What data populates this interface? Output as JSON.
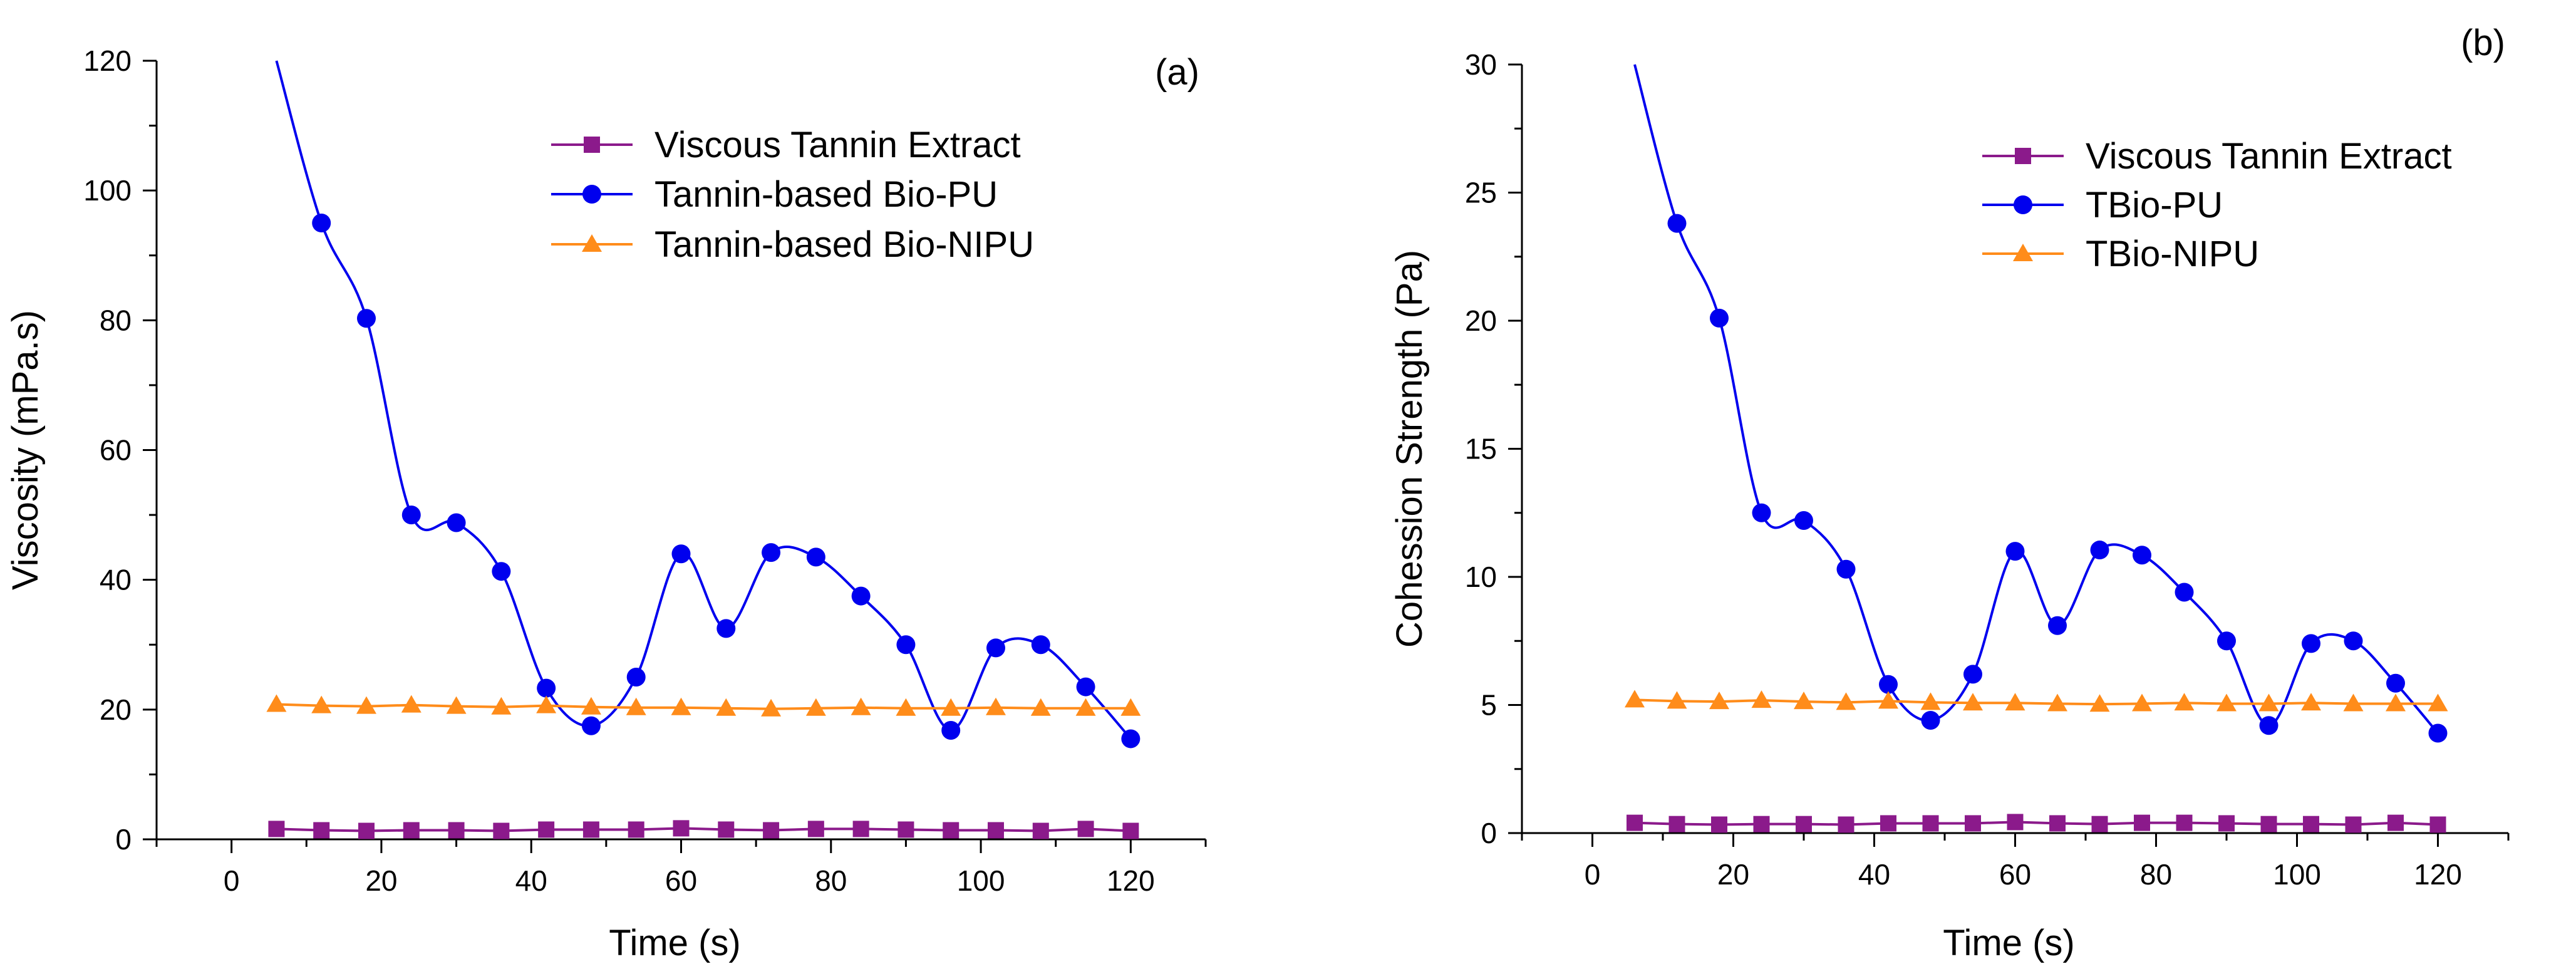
{
  "chart_data": [
    {
      "type": "line",
      "panel_label": "(a)",
      "title": "",
      "xlabel": "Time (s)",
      "ylabel": "Viscosity (mPa.s)",
      "xlim": [
        -10,
        130
      ],
      "ylim": [
        0,
        120
      ],
      "xticks": [
        0,
        20,
        40,
        60,
        80,
        100,
        120
      ],
      "yticks": [
        0,
        20,
        40,
        60,
        80,
        100,
        120
      ],
      "legend_position": "top-center",
      "x": [
        6,
        12,
        18,
        24,
        30,
        36,
        42,
        48,
        54,
        60,
        66,
        72,
        78,
        84,
        90,
        96,
        102,
        108,
        114,
        120
      ],
      "series": [
        {
          "name": "Viscous Tannin Extract",
          "color": "#8B1A8B",
          "marker": "square",
          "values": [
            1.6,
            1.4,
            1.3,
            1.4,
            1.4,
            1.3,
            1.5,
            1.5,
            1.5,
            1.7,
            1.5,
            1.4,
            1.6,
            1.6,
            1.5,
            1.4,
            1.4,
            1.3,
            1.6,
            1.3
          ]
        },
        {
          "name": "Tannin-based Bio-PU",
          "color": "#0000EE",
          "marker": "circle",
          "start_point": [
            6,
            120
          ],
          "values": [
            null,
            95,
            80.3,
            50,
            48.8,
            41.3,
            23.3,
            17.5,
            25,
            44,
            32.5,
            44.2,
            43.5,
            37.5,
            30,
            16.8,
            29.5,
            30,
            23.5,
            15.5
          ]
        },
        {
          "name": "Tannin-based Bio-NIPU",
          "color": "#FF8C1A",
          "marker": "triangle",
          "values": [
            20.8,
            20.6,
            20.5,
            20.7,
            20.5,
            20.4,
            20.6,
            20.4,
            20.3,
            20.3,
            20.2,
            20.1,
            20.2,
            20.3,
            20.2,
            20.2,
            20.3,
            20.2,
            20.2,
            20.2
          ]
        }
      ]
    },
    {
      "type": "line",
      "panel_label": "(b)",
      "title": "",
      "xlabel": "Time (s)",
      "ylabel": "Cohession Strength (Pa)",
      "xlim": [
        -10,
        130
      ],
      "ylim": [
        0,
        30
      ],
      "xticks": [
        0,
        20,
        40,
        60,
        80,
        100,
        120
      ],
      "yticks": [
        0,
        5,
        10,
        15,
        20,
        25,
        30
      ],
      "legend_position": "top-right",
      "x": [
        6,
        12,
        18,
        24,
        30,
        36,
        42,
        48,
        54,
        60,
        66,
        72,
        78,
        84,
        90,
        96,
        102,
        108,
        114,
        120
      ],
      "series": [
        {
          "name": "Viscous Tannin Extract",
          "color": "#8B1A8B",
          "marker": "square",
          "values": [
            0.4,
            0.35,
            0.33,
            0.35,
            0.35,
            0.33,
            0.38,
            0.38,
            0.38,
            0.43,
            0.38,
            0.35,
            0.4,
            0.4,
            0.38,
            0.35,
            0.35,
            0.33,
            0.4,
            0.33
          ]
        },
        {
          "name": "TBio-PU",
          "color": "#0000EE",
          "marker": "circle",
          "start_point": [
            6,
            30
          ],
          "values": [
            null,
            23.8,
            20.1,
            12.5,
            12.2,
            10.3,
            5.8,
            4.4,
            6.2,
            11,
            8.1,
            11.05,
            10.85,
            9.4,
            7.5,
            4.2,
            7.4,
            7.5,
            5.85,
            3.9
          ]
        },
        {
          "name": "TBio-NIPU",
          "color": "#FF8C1A",
          "marker": "triangle",
          "values": [
            5.2,
            5.15,
            5.13,
            5.18,
            5.13,
            5.1,
            5.15,
            5.1,
            5.08,
            5.08,
            5.05,
            5.03,
            5.05,
            5.08,
            5.05,
            5.05,
            5.08,
            5.05,
            5.05,
            5.05
          ]
        }
      ]
    }
  ]
}
